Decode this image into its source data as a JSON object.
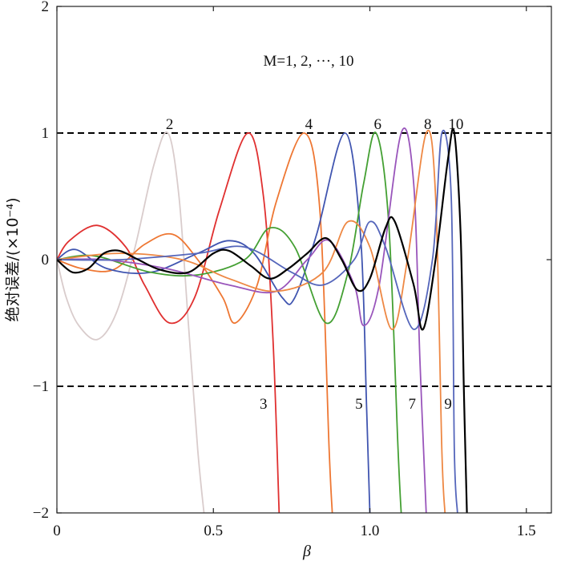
{
  "chart_data": {
    "type": "line",
    "title": "",
    "xlabel": "β",
    "ylabel": "绝对误差/(×10⁻⁴)",
    "xlim": [
      0,
      1.58
    ],
    "ylim": [
      -2,
      2
    ],
    "x_ticks": [
      0,
      0.5,
      1.0,
      1.5
    ],
    "x_tick_labels": [
      "0",
      "0.5",
      "1.0",
      "1.5"
    ],
    "y_ticks": [
      -2,
      -1,
      0,
      1,
      2
    ],
    "y_tick_labels": [
      "−2",
      "−1",
      "0",
      "1",
      "2"
    ],
    "grid": false,
    "legend": "none",
    "annotation": "M=1, 2, ···, 10",
    "reference_lines": [
      {
        "y": 1,
        "style": "dashed",
        "color": "#000000"
      },
      {
        "y": -1,
        "style": "dashed",
        "color": "#000000"
      }
    ],
    "series": [
      {
        "label": "2",
        "color": "#d9cccc",
        "points": [
          [
            0,
            0
          ],
          [
            0.03,
            -0.3
          ],
          [
            0.07,
            -0.52
          ],
          [
            0.13,
            -0.63
          ],
          [
            0.19,
            -0.42
          ],
          [
            0.25,
            0.1
          ],
          [
            0.31,
            0.75
          ],
          [
            0.355,
            1.0
          ],
          [
            0.39,
            0.5
          ],
          [
            0.42,
            -0.5
          ],
          [
            0.45,
            -1.5
          ],
          [
            0.47,
            -2.0
          ]
        ]
      },
      {
        "label": "3",
        "color": "#e03030",
        "points": [
          [
            0,
            0
          ],
          [
            0.04,
            0.15
          ],
          [
            0.13,
            0.27
          ],
          [
            0.22,
            0.1
          ],
          [
            0.28,
            -0.2
          ],
          [
            0.36,
            -0.5
          ],
          [
            0.44,
            -0.3
          ],
          [
            0.52,
            0.4
          ],
          [
            0.61,
            1.0
          ],
          [
            0.66,
            0.5
          ],
          [
            0.69,
            -0.6
          ],
          [
            0.71,
            -2.0
          ]
        ]
      },
      {
        "label": "4",
        "color": "#ee7733",
        "points": [
          [
            0,
            0
          ],
          [
            0.08,
            -0.07
          ],
          [
            0.18,
            -0.08
          ],
          [
            0.28,
            0.12
          ],
          [
            0.37,
            0.2
          ],
          [
            0.45,
            0.0
          ],
          [
            0.53,
            -0.3
          ],
          [
            0.57,
            -0.5
          ],
          [
            0.64,
            -0.2
          ],
          [
            0.7,
            0.45
          ],
          [
            0.79,
            1.0
          ],
          [
            0.84,
            0.4
          ],
          [
            0.87,
            -1.5
          ],
          [
            0.88,
            -2.0
          ]
        ]
      },
      {
        "label": "5",
        "color": "#4055b0",
        "points": [
          [
            0,
            0
          ],
          [
            0.06,
            0.08
          ],
          [
            0.16,
            -0.07
          ],
          [
            0.3,
            -0.1
          ],
          [
            0.45,
            0.05
          ],
          [
            0.55,
            0.15
          ],
          [
            0.63,
            0.05
          ],
          [
            0.72,
            -0.3
          ],
          [
            0.76,
            -0.3
          ],
          [
            0.83,
            0.2
          ],
          [
            0.92,
            1.0
          ],
          [
            0.97,
            0.2
          ],
          [
            0.99,
            -1.2
          ],
          [
            1.0,
            -2.0
          ]
        ]
      },
      {
        "label": "6",
        "color": "#44a033",
        "points": [
          [
            0,
            0
          ],
          [
            0.12,
            0.03
          ],
          [
            0.3,
            -0.1
          ],
          [
            0.45,
            -0.12
          ],
          [
            0.6,
            0.0
          ],
          [
            0.68,
            0.25
          ],
          [
            0.76,
            0.1
          ],
          [
            0.86,
            -0.5
          ],
          [
            0.93,
            -0.1
          ],
          [
            0.98,
            0.6
          ],
          [
            1.02,
            1.0
          ],
          [
            1.06,
            0.3
          ],
          [
            1.09,
            -1.5
          ],
          [
            1.1,
            -2.0
          ]
        ]
      },
      {
        "label": "7",
        "color": "#9955bb",
        "points": [
          [
            0,
            0
          ],
          [
            0.15,
            0.0
          ],
          [
            0.35,
            -0.07
          ],
          [
            0.55,
            -0.2
          ],
          [
            0.7,
            -0.25
          ],
          [
            0.8,
            0.0
          ],
          [
            0.87,
            0.15
          ],
          [
            0.95,
            -0.2
          ],
          [
            0.98,
            -0.52
          ],
          [
            1.03,
            -0.2
          ],
          [
            1.1,
            1.0
          ],
          [
            1.14,
            0.6
          ],
          [
            1.16,
            -0.8
          ],
          [
            1.18,
            -2.0
          ]
        ]
      },
      {
        "label": "8",
        "color": "#ee8844",
        "points": [
          [
            0,
            0
          ],
          [
            0.2,
            0.05
          ],
          [
            0.4,
            0.0
          ],
          [
            0.55,
            -0.15
          ],
          [
            0.7,
            -0.25
          ],
          [
            0.85,
            -0.1
          ],
          [
            0.93,
            0.3
          ],
          [
            1.0,
            0.1
          ],
          [
            1.07,
            -0.55
          ],
          [
            1.12,
            0.0
          ],
          [
            1.18,
            1.0
          ],
          [
            1.21,
            0.5
          ],
          [
            1.23,
            -1.5
          ],
          [
            1.24,
            -2.0
          ]
        ]
      },
      {
        "label": "9",
        "color": "#5566bb",
        "points": [
          [
            0,
            0
          ],
          [
            0.2,
            0.0
          ],
          [
            0.45,
            0.05
          ],
          [
            0.6,
            0.1
          ],
          [
            0.75,
            -0.1
          ],
          [
            0.85,
            -0.2
          ],
          [
            0.95,
            0.0
          ],
          [
            1.0,
            0.3
          ],
          [
            1.05,
            0.1
          ],
          [
            1.14,
            -0.55
          ],
          [
            1.2,
            0.0
          ],
          [
            1.23,
            1.0
          ],
          [
            1.26,
            0.5
          ],
          [
            1.27,
            -1.5
          ],
          [
            1.28,
            -2.0
          ]
        ]
      },
      {
        "label": "10",
        "color": "#000000",
        "points": [
          [
            0,
            0
          ],
          [
            0.05,
            -0.1
          ],
          [
            0.1,
            -0.07
          ],
          [
            0.15,
            0.05
          ],
          [
            0.2,
            0.07
          ],
          [
            0.26,
            0.0
          ],
          [
            0.33,
            -0.08
          ],
          [
            0.42,
            -0.1
          ],
          [
            0.5,
            0.05
          ],
          [
            0.55,
            0.07
          ],
          [
            0.62,
            -0.05
          ],
          [
            0.68,
            -0.15
          ],
          [
            0.74,
            -0.07
          ],
          [
            0.8,
            0.05
          ],
          [
            0.86,
            0.17
          ],
          [
            0.91,
            0.0
          ],
          [
            0.96,
            -0.24
          ],
          [
            1.0,
            -0.15
          ],
          [
            1.05,
            0.25
          ],
          [
            1.08,
            0.3
          ],
          [
            1.14,
            -0.2
          ],
          [
            1.17,
            -0.55
          ],
          [
            1.21,
            0.0
          ],
          [
            1.25,
            0.8
          ],
          [
            1.27,
            1.0
          ],
          [
            1.29,
            0.2
          ],
          [
            1.3,
            -1.0
          ],
          [
            1.31,
            -2.0
          ]
        ]
      }
    ],
    "curve_labels": [
      {
        "text": "2",
        "x": 0.36,
        "y": 1.0,
        "anchor": "above"
      },
      {
        "text": "4",
        "x": 0.805,
        "y": 1.0,
        "anchor": "above"
      },
      {
        "text": "6",
        "x": 1.025,
        "y": 1.0,
        "anchor": "above"
      },
      {
        "text": "8",
        "x": 1.185,
        "y": 1.0,
        "anchor": "above"
      },
      {
        "text": "10",
        "x": 1.275,
        "y": 1.0,
        "anchor": "above"
      },
      {
        "text": "3",
        "x": 0.66,
        "y": -1.0,
        "anchor": "below"
      },
      {
        "text": "5",
        "x": 0.965,
        "y": -1.0,
        "anchor": "below"
      },
      {
        "text": "7",
        "x": 1.135,
        "y": -1.0,
        "anchor": "below"
      },
      {
        "text": "9",
        "x": 1.25,
        "y": -1.0,
        "anchor": "below"
      }
    ]
  }
}
